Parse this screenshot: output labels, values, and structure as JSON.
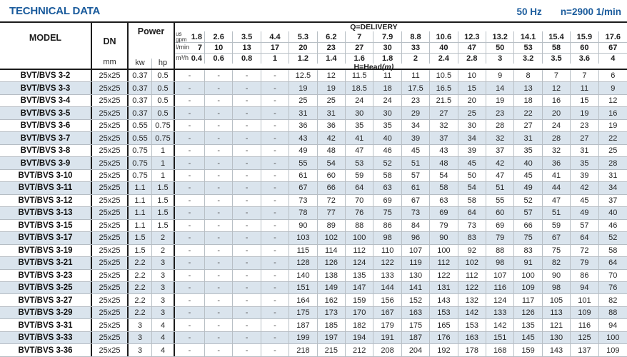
{
  "header": {
    "title": "TECHNICAL DATA",
    "frequency": "50 Hz",
    "speed": "n=2900 1/min"
  },
  "table": {
    "columns": {
      "model": "MODEL",
      "dn": "DN",
      "dn_unit": "mm",
      "power": "Power",
      "kw": "kw",
      "hp": "hp"
    },
    "delivery_label": "Q=DELIVERY",
    "head_label": "H=Head",
    "head_label_unit": "(m)",
    "unit_rows": [
      {
        "label": "us\ngpm",
        "values": [
          "1.8",
          "2.6",
          "3.5",
          "4.4",
          "5.3",
          "6.2",
          "7",
          "7.9",
          "8.8",
          "10.6",
          "12.3",
          "13.2",
          "14.1",
          "15.4",
          "15.9",
          "17.6"
        ]
      },
      {
        "label": "l/min",
        "values": [
          "7",
          "10",
          "13",
          "17",
          "20",
          "23",
          "27",
          "30",
          "33",
          "40",
          "47",
          "50",
          "53",
          "58",
          "60",
          "67"
        ]
      },
      {
        "label": "m³/h",
        "values": [
          "0.4",
          "0.6",
          "0.8",
          "1",
          "1.2",
          "1.4",
          "1.6",
          "1.8",
          "2",
          "2.4",
          "2.8",
          "3",
          "3.2",
          "3.5",
          "3.6",
          "4"
        ]
      }
    ],
    "rows": [
      {
        "model": "BVT/BVS 3-2",
        "dn": "25x25",
        "kw": "0.37",
        "hp": "0.5",
        "head": [
          "-",
          "-",
          "-",
          "-",
          "12.5",
          "12",
          "11.5",
          "11",
          "11",
          "10.5",
          "10",
          "9",
          "8",
          "7",
          "7",
          "6"
        ]
      },
      {
        "model": "BVT/BVS 3-3",
        "dn": "25x25",
        "kw": "0.37",
        "hp": "0.5",
        "head": [
          "-",
          "-",
          "-",
          "-",
          "19",
          "19",
          "18.5",
          "18",
          "17.5",
          "16.5",
          "15",
          "14",
          "13",
          "12",
          "11",
          "9"
        ]
      },
      {
        "model": "BVT/BVS 3-4",
        "dn": "25x25",
        "kw": "0.37",
        "hp": "0.5",
        "head": [
          "-",
          "-",
          "-",
          "-",
          "25",
          "25",
          "24",
          "24",
          "23",
          "21.5",
          "20",
          "19",
          "18",
          "16",
          "15",
          "12"
        ]
      },
      {
        "model": "BVT/BVS 3-5",
        "dn": "25x25",
        "kw": "0.37",
        "hp": "0.5",
        "head": [
          "-",
          "-",
          "-",
          "-",
          "31",
          "31",
          "30",
          "30",
          "29",
          "27",
          "25",
          "23",
          "22",
          "20",
          "19",
          "16"
        ]
      },
      {
        "model": "BVT/BVS 3-6",
        "dn": "25x25",
        "kw": "0.55",
        "hp": "0.75",
        "head": [
          "-",
          "-",
          "-",
          "-",
          "36",
          "36",
          "35",
          "35",
          "34",
          "32",
          "30",
          "28",
          "27",
          "24",
          "23",
          "19"
        ]
      },
      {
        "model": "BVT/BVS 3-7",
        "dn": "25x25",
        "kw": "0.55",
        "hp": "0.75",
        "head": [
          "-",
          "-",
          "-",
          "-",
          "43",
          "42",
          "41",
          "40",
          "39",
          "37",
          "34",
          "32",
          "31",
          "28",
          "27",
          "22"
        ]
      },
      {
        "model": "BVT/BVS 3-8",
        "dn": "25x25",
        "kw": "0.75",
        "hp": "1",
        "head": [
          "-",
          "-",
          "-",
          "-",
          "49",
          "48",
          "47",
          "46",
          "45",
          "43",
          "39",
          "37",
          "35",
          "32",
          "31",
          "25"
        ]
      },
      {
        "model": "BVT/BVS 3-9",
        "dn": "25x25",
        "kw": "0.75",
        "hp": "1",
        "head": [
          "-",
          "-",
          "-",
          "-",
          "55",
          "54",
          "53",
          "52",
          "51",
          "48",
          "45",
          "42",
          "40",
          "36",
          "35",
          "28"
        ]
      },
      {
        "model": "BVT/BVS 3-10",
        "dn": "25x25",
        "kw": "0.75",
        "hp": "1",
        "head": [
          "-",
          "-",
          "-",
          "-",
          "61",
          "60",
          "59",
          "58",
          "57",
          "54",
          "50",
          "47",
          "45",
          "41",
          "39",
          "31"
        ]
      },
      {
        "model": "BVT/BVS 3-11",
        "dn": "25x25",
        "kw": "1.1",
        "hp": "1.5",
        "head": [
          "-",
          "-",
          "-",
          "-",
          "67",
          "66",
          "64",
          "63",
          "61",
          "58",
          "54",
          "51",
          "49",
          "44",
          "42",
          "34"
        ]
      },
      {
        "model": "BVT/BVS 3-12",
        "dn": "25x25",
        "kw": "1.1",
        "hp": "1.5",
        "head": [
          "-",
          "-",
          "-",
          "-",
          "73",
          "72",
          "70",
          "69",
          "67",
          "63",
          "58",
          "55",
          "52",
          "47",
          "45",
          "37"
        ]
      },
      {
        "model": "BVT/BVS 3-13",
        "dn": "25x25",
        "kw": "1.1",
        "hp": "1.5",
        "head": [
          "-",
          "-",
          "-",
          "-",
          "78",
          "77",
          "76",
          "75",
          "73",
          "69",
          "64",
          "60",
          "57",
          "51",
          "49",
          "40"
        ]
      },
      {
        "model": "BVT/BVS 3-15",
        "dn": "25x25",
        "kw": "1.1",
        "hp": "1.5",
        "head": [
          "-",
          "-",
          "-",
          "-",
          "90",
          "89",
          "88",
          "86",
          "84",
          "79",
          "73",
          "69",
          "66",
          "59",
          "57",
          "46"
        ]
      },
      {
        "model": "BVT/BVS 3-17",
        "dn": "25x25",
        "kw": "1.5",
        "hp": "2",
        "head": [
          "-",
          "-",
          "-",
          "-",
          "103",
          "102",
          "100",
          "98",
          "96",
          "90",
          "83",
          "79",
          "75",
          "67",
          "64",
          "52"
        ]
      },
      {
        "model": "BVT/BVS 3-19",
        "dn": "25x25",
        "kw": "1.5",
        "hp": "2",
        "head": [
          "-",
          "-",
          "-",
          "-",
          "115",
          "114",
          "112",
          "110",
          "107",
          "100",
          "92",
          "88",
          "83",
          "75",
          "72",
          "58"
        ]
      },
      {
        "model": "BVT/BVS 3-21",
        "dn": "25x25",
        "kw": "2.2",
        "hp": "3",
        "head": [
          "-",
          "-",
          "-",
          "-",
          "128",
          "126",
          "124",
          "122",
          "119",
          "112",
          "102",
          "98",
          "91",
          "82",
          "79",
          "64"
        ]
      },
      {
        "model": "BVT/BVS 3-23",
        "dn": "25x25",
        "kw": "2.2",
        "hp": "3",
        "head": [
          "-",
          "-",
          "-",
          "-",
          "140",
          "138",
          "135",
          "133",
          "130",
          "122",
          "112",
          "107",
          "100",
          "90",
          "86",
          "70"
        ]
      },
      {
        "model": "BVT/BVS 3-25",
        "dn": "25x25",
        "kw": "2.2",
        "hp": "3",
        "head": [
          "-",
          "-",
          "-",
          "-",
          "151",
          "149",
          "147",
          "144",
          "141",
          "131",
          "122",
          "116",
          "109",
          "98",
          "94",
          "76"
        ]
      },
      {
        "model": "BVT/BVS 3-27",
        "dn": "25x25",
        "kw": "2.2",
        "hp": "3",
        "head": [
          "-",
          "-",
          "-",
          "-",
          "164",
          "162",
          "159",
          "156",
          "152",
          "143",
          "132",
          "124",
          "117",
          "105",
          "101",
          "82"
        ]
      },
      {
        "model": "BVT/BVS 3-29",
        "dn": "25x25",
        "kw": "2.2",
        "hp": "3",
        "head": [
          "-",
          "-",
          "-",
          "-",
          "175",
          "173",
          "170",
          "167",
          "163",
          "153",
          "142",
          "133",
          "126",
          "113",
          "109",
          "88"
        ]
      },
      {
        "model": "BVT/BVS 3-31",
        "dn": "25x25",
        "kw": "3",
        "hp": "4",
        "head": [
          "-",
          "-",
          "-",
          "-",
          "187",
          "185",
          "182",
          "179",
          "175",
          "165",
          "153",
          "142",
          "135",
          "121",
          "116",
          "94"
        ]
      },
      {
        "model": "BVT/BVS 3-33",
        "dn": "25x25",
        "kw": "3",
        "hp": "4",
        "head": [
          "-",
          "-",
          "-",
          "-",
          "199",
          "197",
          "194",
          "191",
          "187",
          "176",
          "163",
          "151",
          "145",
          "130",
          "125",
          "100"
        ]
      },
      {
        "model": "BVT/BVS 3-36",
        "dn": "25x25",
        "kw": "3",
        "hp": "4",
        "head": [
          "-",
          "-",
          "-",
          "-",
          "218",
          "215",
          "212",
          "208",
          "204",
          "192",
          "178",
          "168",
          "159",
          "143",
          "137",
          "109"
        ]
      }
    ]
  },
  "colors": {
    "accent_blue": "#1a5b9c",
    "row_alt_background": "#dae4ed",
    "grid_line": "#b8bfc5",
    "heavy_line": "#1c1c1c"
  }
}
